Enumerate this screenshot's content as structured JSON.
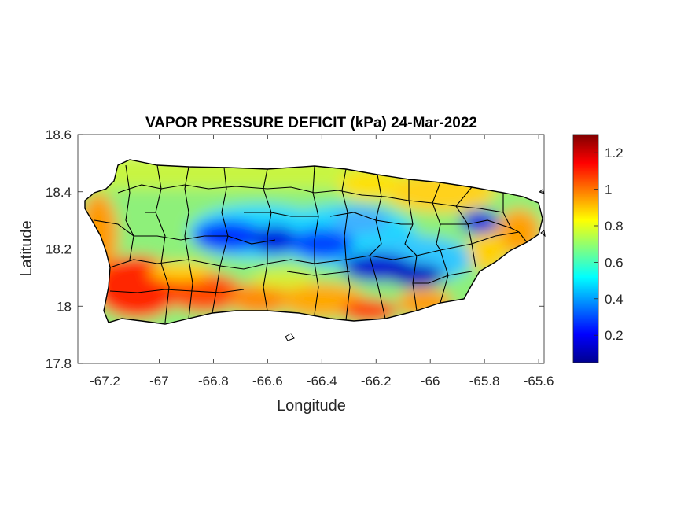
{
  "map": {
    "title": "VAPOR PRESSURE DEFICIT (kPa) 24-Mar-2022",
    "xlabel": "Longitude",
    "ylabel": "Latitude",
    "xlim": [
      -67.3,
      -65.58
    ],
    "ylim": [
      17.8,
      18.6
    ],
    "xticks": [
      -67.2,
      -67,
      -66.8,
      -66.6,
      -66.4,
      -66.2,
      -66,
      -65.8,
      -65.6
    ],
    "xtick_labels": [
      "-67.2",
      "-67",
      "-66.8",
      "-66.6",
      "-66.4",
      "-66.2",
      "-66",
      "-65.8",
      "-65.6"
    ],
    "yticks": [
      17.8,
      18,
      18.2,
      18.4,
      18.6
    ],
    "ytick_labels": [
      "17.8",
      "18",
      "18.2",
      "18.4",
      "18.6"
    ],
    "colorbar": {
      "range": [
        0.05,
        1.3
      ],
      "ticks": [
        0.2,
        0.4,
        0.6,
        0.8,
        1,
        1.2
      ],
      "tick_labels": [
        "0.2",
        "0.4",
        "0.6",
        "0.8",
        "1",
        "1.2"
      ],
      "colormap": "jet"
    },
    "colors": {
      "border": "#000000",
      "axis": "#262626",
      "background": "#ffffff"
    }
  }
}
